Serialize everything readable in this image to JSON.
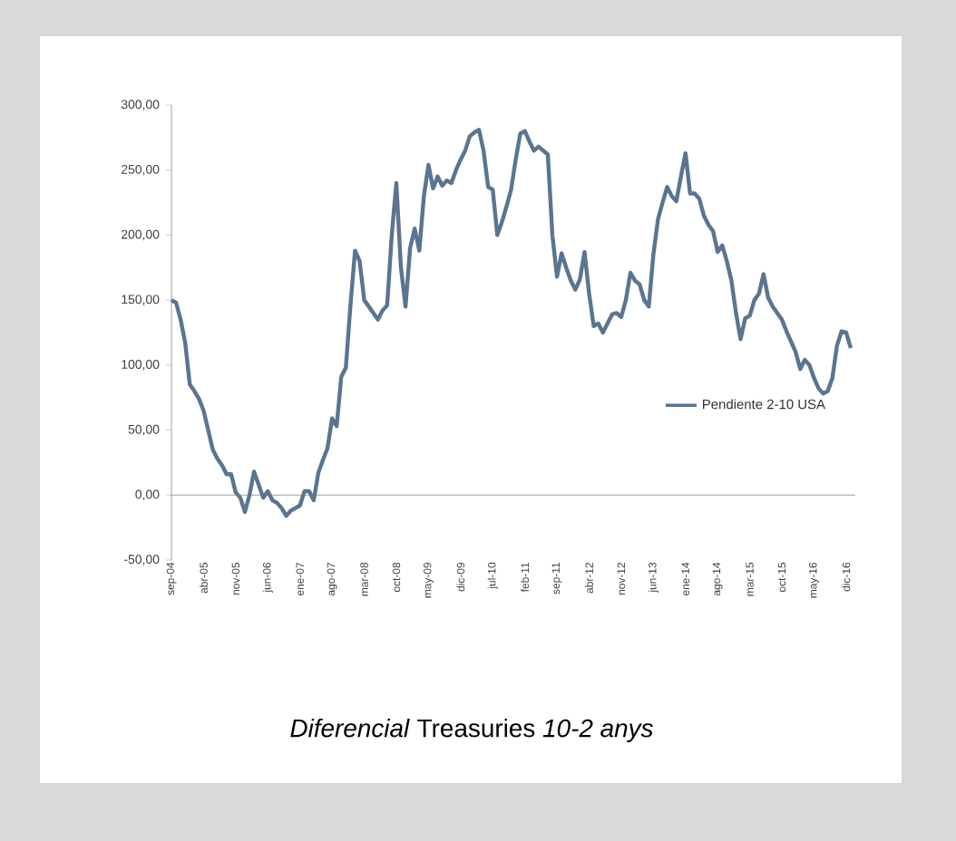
{
  "chart_data": {
    "type": "line",
    "title": "*Diferencial* Treasuries *10-2 anys*",
    "categories": [
      "sep-04",
      null,
      null,
      null,
      null,
      null,
      null,
      "abr-05",
      null,
      null,
      null,
      null,
      null,
      null,
      "nov-05",
      null,
      null,
      null,
      null,
      null,
      null,
      "jun-06",
      null,
      null,
      null,
      null,
      null,
      null,
      "ene-07",
      null,
      null,
      null,
      null,
      null,
      null,
      "ago-07",
      null,
      null,
      null,
      null,
      null,
      null,
      "mar-08",
      null,
      null,
      null,
      null,
      null,
      null,
      "oct-08",
      null,
      null,
      null,
      null,
      null,
      null,
      "may-09",
      null,
      null,
      null,
      null,
      null,
      null,
      "dic-09",
      null,
      null,
      null,
      null,
      null,
      null,
      "jul-10",
      null,
      null,
      null,
      null,
      null,
      null,
      "feb-11",
      null,
      null,
      null,
      null,
      null,
      null,
      "sep-11",
      null,
      null,
      null,
      null,
      null,
      null,
      "abr-12",
      null,
      null,
      null,
      null,
      null,
      null,
      "nov-12",
      null,
      null,
      null,
      null,
      null,
      null,
      "jun-13",
      null,
      null,
      null,
      null,
      null,
      null,
      "ene-14",
      null,
      null,
      null,
      null,
      null,
      null,
      "ago-14",
      null,
      null,
      null,
      null,
      null,
      null,
      "mar-15",
      null,
      null,
      null,
      null,
      null,
      null,
      "oct-15",
      null,
      null,
      null,
      null,
      null,
      null,
      "may-16",
      null,
      null,
      null,
      null,
      null,
      null,
      "dic-16",
      null
    ],
    "series": [
      {
        "name": "Pendiente 2-10 USA",
        "color": "#5b7590",
        "values": [
          150,
          148,
          135,
          117,
          85,
          80,
          74,
          65,
          50,
          35,
          28,
          23,
          16,
          16,
          2,
          -2,
          -13,
          0,
          18,
          8,
          -2,
          3,
          -4,
          -6,
          -10,
          -16,
          -12,
          -10,
          -8,
          3,
          3,
          -4,
          17,
          27,
          36,
          59,
          53,
          91,
          98,
          146,
          188,
          180,
          150,
          145,
          140,
          135,
          142,
          146,
          200,
          240,
          175,
          145,
          190,
          205,
          188,
          230,
          254,
          236,
          245,
          238,
          242,
          240,
          250,
          258,
          265,
          276,
          279,
          281,
          265,
          237,
          235,
          200,
          210,
          222,
          235,
          258,
          278,
          280,
          272,
          265,
          268,
          265,
          262,
          200,
          168,
          186,
          175,
          165,
          158,
          166,
          187,
          155,
          130,
          132,
          125,
          132,
          139,
          140,
          137,
          150,
          171,
          165,
          162,
          150,
          145,
          185,
          212,
          225,
          237,
          230,
          226,
          245,
          263,
          232,
          232,
          228,
          215,
          208,
          203,
          187,
          192,
          180,
          165,
          140,
          120,
          136,
          138,
          150,
          155,
          170,
          152,
          145,
          140,
          135,
          126,
          118,
          110,
          97,
          104,
          100,
          90,
          82,
          78,
          80,
          90,
          115,
          126,
          125,
          113
        ]
      }
    ],
    "ylim": [
      -50,
      300
    ],
    "yticks": [
      {
        "value": -50,
        "label": "-50,00"
      },
      {
        "value": 0,
        "label": "0,00"
      },
      {
        "value": 50,
        "label": "50,00"
      },
      {
        "value": 100,
        "label": "100,00"
      },
      {
        "value": 150,
        "label": "150,00"
      },
      {
        "value": 200,
        "label": "200,00"
      },
      {
        "value": 250,
        "label": "250,00"
      },
      {
        "value": 300,
        "label": "300,00"
      }
    ],
    "legend": "right",
    "marker": "none",
    "line_style": "solid"
  }
}
